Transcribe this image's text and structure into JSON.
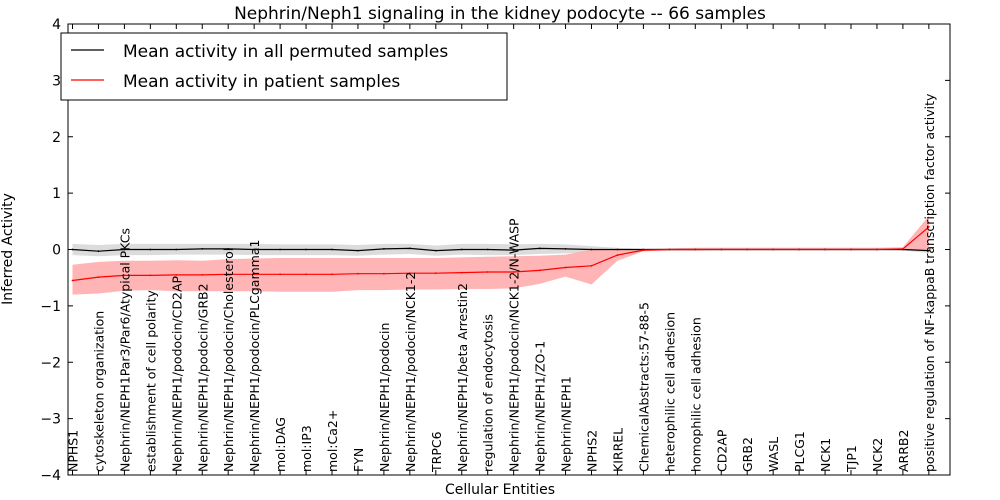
{
  "chart_data": {
    "type": "line",
    "title": "Nephrin/Neph1 signaling in the kidney podocyte -- 66 samples",
    "xlabel": "Cellular Entities",
    "ylabel": "Inferred Activity",
    "ylim": [
      -4,
      4
    ],
    "yticks": [
      -4,
      -3,
      -2,
      -1,
      0,
      1,
      2,
      3,
      4
    ],
    "ytick_labels": [
      "−4",
      "−3",
      "−2",
      "−1",
      "0",
      "1",
      "2",
      "3",
      "4"
    ],
    "legend_position": "top-left",
    "grid": false,
    "categories": [
      "NPHS1",
      "cytoskeleton organization",
      "Nephrin/NEPH1Par3/Par6/Atypical PKCs",
      "establishment of cell polarity",
      "Nephrin/NEPH1/podocin/CD2AP",
      "Nephrin/NEPH1/podocin/GRB2",
      "Nephrin/NEPH1/podocin/Cholesterol",
      "Nephrin/NEPH1/podocin/PLCgamma1",
      "mol:DAG",
      "mol:IP3",
      "mol:Ca2+",
      "FYN",
      "Nephrin/NEPH1/podocin",
      "Nephrin/NEPH1/podocin/NCK1-2",
      "TRPC6",
      "Nephrin/NEPH1/beta Arrestin2",
      "regulation of endocytosis",
      "Nephrin/NEPH1/podocin/NCK1-2/N-WASP",
      "Nephrin/NEPH1/ZO-1",
      "Nephrin/NEPH1",
      "NPHS2",
      "KIRREL",
      "ChemicalAbstracts:57-88-5",
      "heterophilic cell adhesion",
      "homophilic cell adhesion",
      "CD2AP",
      "GRB2",
      "WASL",
      "PLCG1",
      "NCK1",
      "TJP1",
      "NCK2",
      "ARRB2",
      "positive regulation of NF-kappaB transcription factor activity"
    ],
    "series": [
      {
        "name": "Mean activity in all permuted samples",
        "color": "#000000",
        "band_color": "#bfbfbf",
        "values": [
          0.0,
          -0.03,
          0.0,
          0.0,
          0.0,
          0.01,
          0.01,
          0.0,
          0.0,
          0.0,
          0.0,
          -0.02,
          0.01,
          0.02,
          -0.02,
          0.0,
          0.0,
          -0.01,
          0.02,
          0.01,
          0.0,
          0.0,
          0.0,
          0.0,
          0.0,
          0.0,
          0.0,
          0.0,
          0.0,
          0.0,
          0.0,
          0.0,
          0.0,
          -0.02
        ],
        "lower": [
          -0.1,
          -0.12,
          -0.1,
          -0.1,
          -0.09,
          -0.09,
          -0.09,
          -0.1,
          -0.1,
          -0.1,
          -0.1,
          -0.11,
          -0.09,
          -0.08,
          -0.11,
          -0.09,
          -0.1,
          -0.1,
          -0.08,
          -0.07,
          -0.05,
          -0.03,
          -0.01,
          -0.01,
          -0.01,
          -0.01,
          -0.01,
          -0.01,
          -0.01,
          -0.01,
          -0.01,
          -0.01,
          -0.02,
          -0.06
        ],
        "upper": [
          0.1,
          0.08,
          0.1,
          0.1,
          0.1,
          0.1,
          0.1,
          0.1,
          0.09,
          0.09,
          0.09,
          0.08,
          0.1,
          0.1,
          0.07,
          0.1,
          0.1,
          0.09,
          0.1,
          0.09,
          0.06,
          0.03,
          0.01,
          0.01,
          0.01,
          0.01,
          0.01,
          0.01,
          0.01,
          0.01,
          0.01,
          0.01,
          0.02,
          0.04
        ]
      },
      {
        "name": "Mean activity in patient samples",
        "color": "#ff0000",
        "band_color": "#ffadad",
        "values": [
          -0.55,
          -0.49,
          -0.46,
          -0.46,
          -0.45,
          -0.45,
          -0.44,
          -0.44,
          -0.44,
          -0.44,
          -0.44,
          -0.43,
          -0.43,
          -0.42,
          -0.42,
          -0.41,
          -0.4,
          -0.4,
          -0.37,
          -0.32,
          -0.29,
          -0.1,
          -0.01,
          0.0,
          0.0,
          0.0,
          0.0,
          0.0,
          0.0,
          0.0,
          0.0,
          0.0,
          0.01,
          0.4
        ],
        "lower": [
          -0.8,
          -0.78,
          -0.73,
          -0.72,
          -0.74,
          -0.74,
          -0.74,
          -0.74,
          -0.75,
          -0.75,
          -0.75,
          -0.72,
          -0.72,
          -0.71,
          -0.71,
          -0.7,
          -0.7,
          -0.69,
          -0.61,
          -0.48,
          -0.62,
          -0.2,
          -0.03,
          -0.02,
          -0.02,
          -0.01,
          -0.01,
          -0.01,
          -0.01,
          -0.01,
          -0.01,
          -0.01,
          -0.01,
          0.0
        ],
        "upper": [
          -0.27,
          -0.22,
          -0.2,
          -0.2,
          -0.19,
          -0.2,
          -0.17,
          -0.16,
          -0.15,
          -0.15,
          -0.15,
          -0.15,
          -0.15,
          -0.15,
          -0.15,
          -0.14,
          -0.13,
          -0.12,
          -0.11,
          -0.09,
          0.0,
          0.0,
          0.01,
          0.02,
          0.03,
          0.03,
          0.03,
          0.03,
          0.03,
          0.03,
          0.03,
          0.03,
          0.04,
          0.6
        ]
      }
    ]
  }
}
